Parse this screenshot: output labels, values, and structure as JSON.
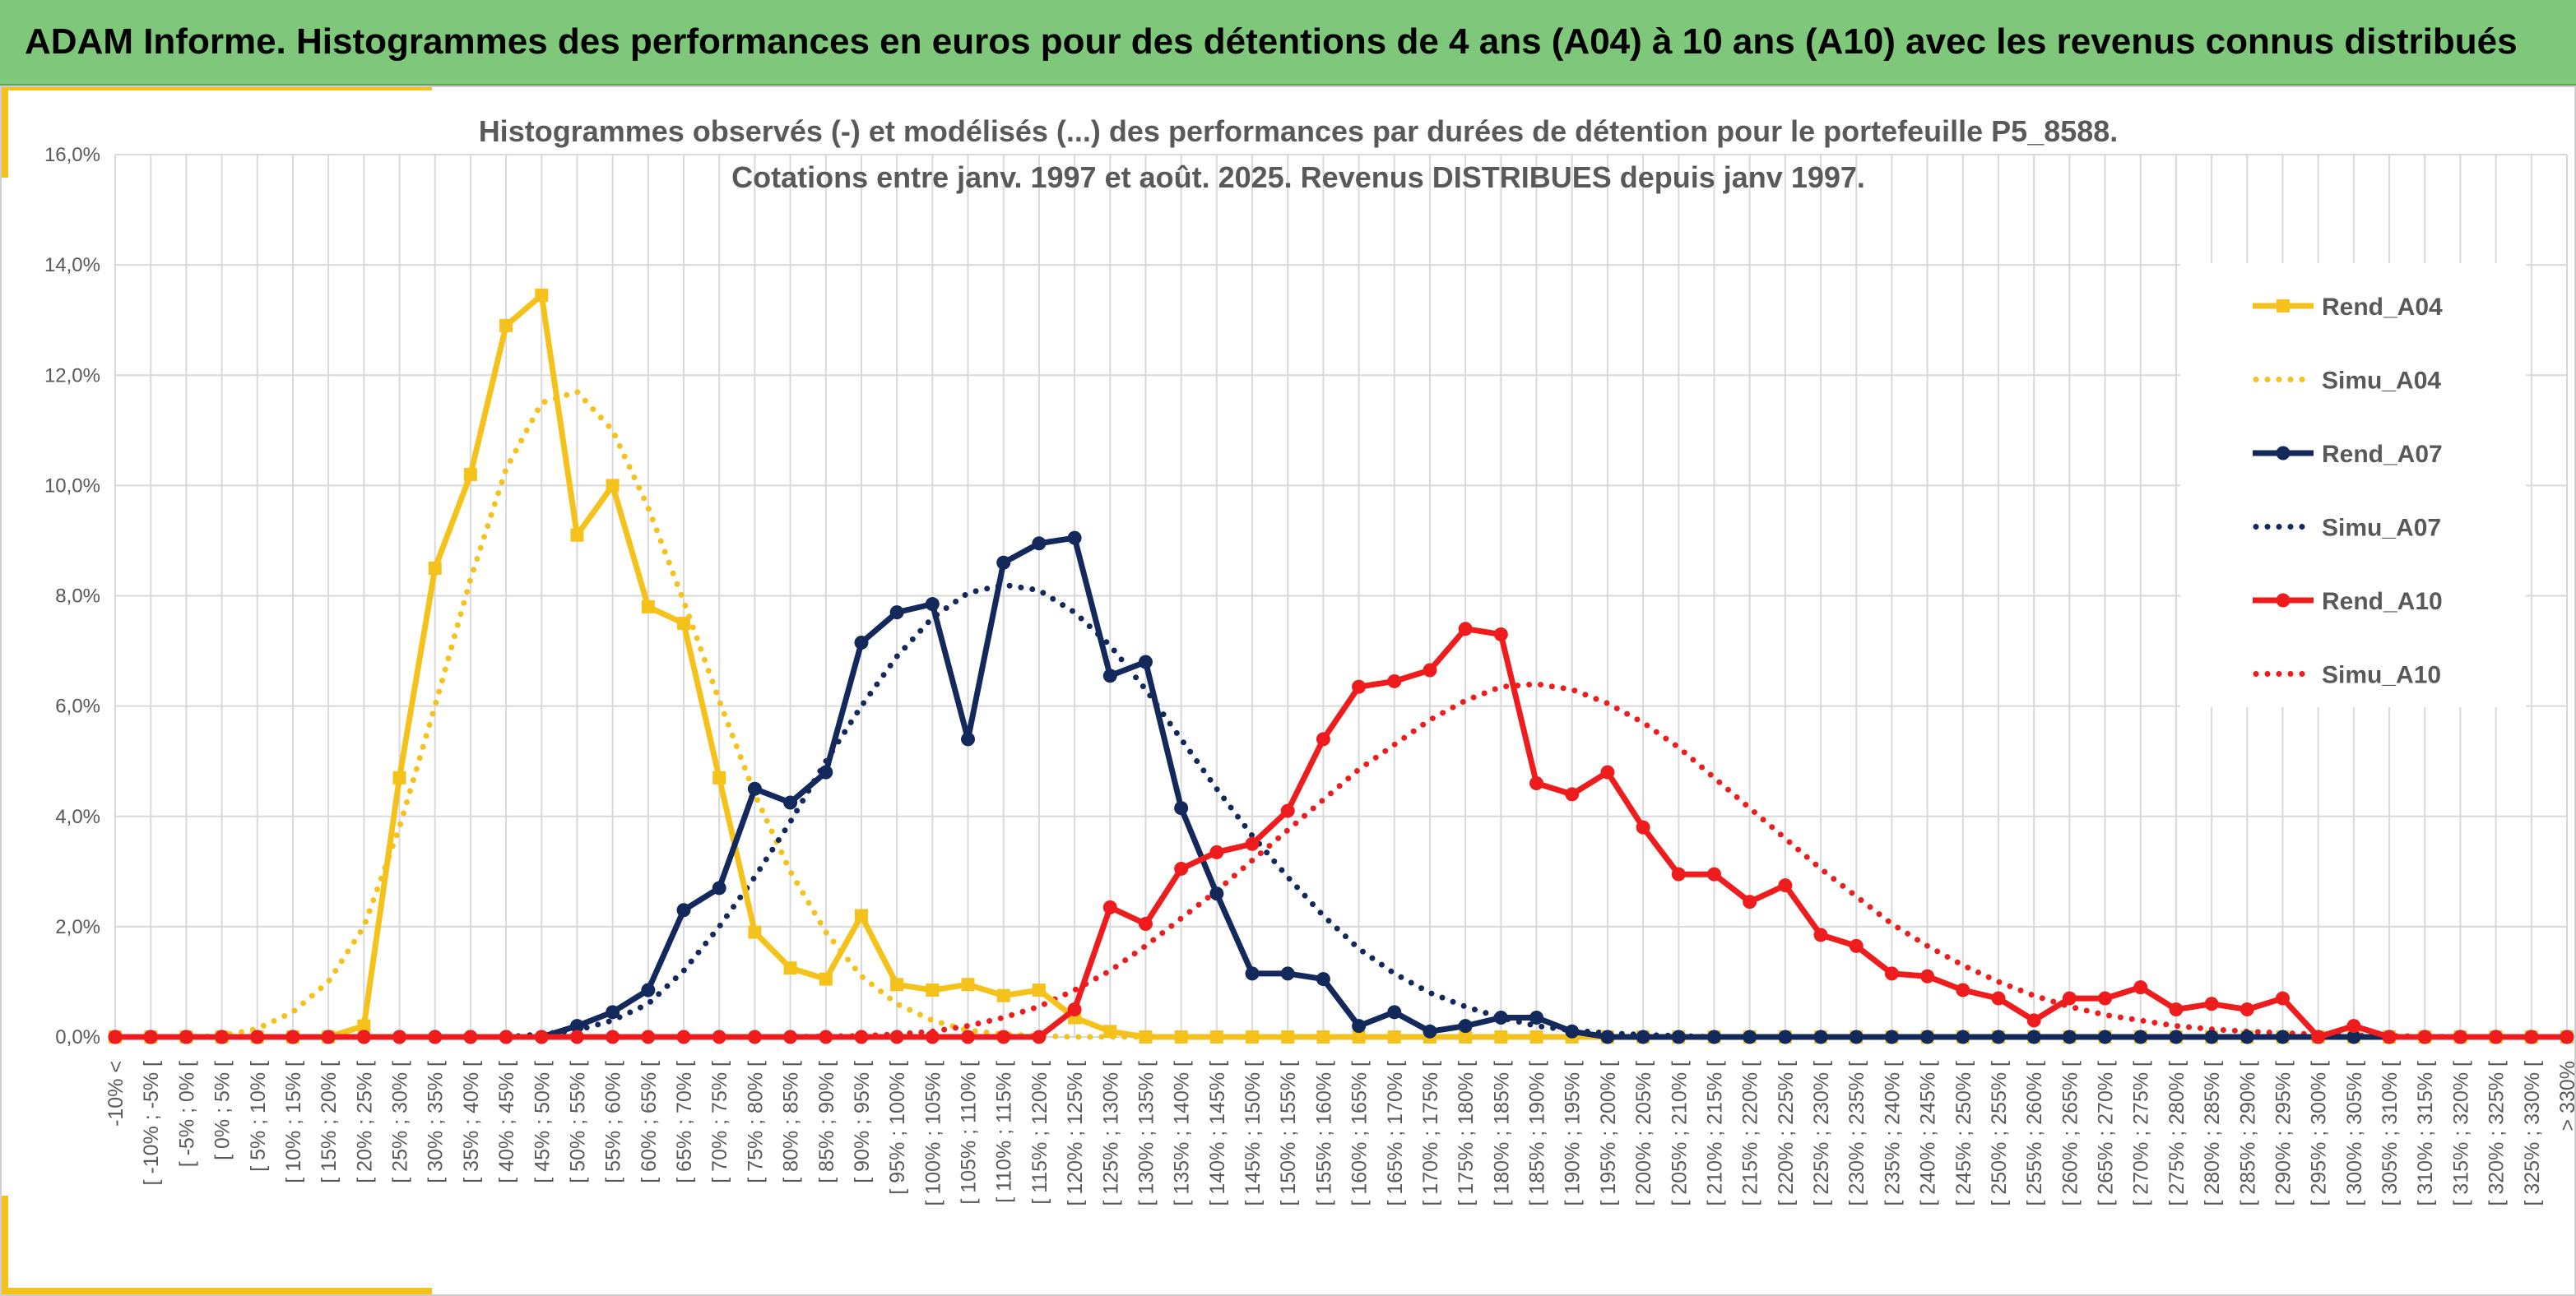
{
  "header": {
    "title": "ADAM Informe. Histogrammes des performances en euros pour des détentions de 4 ans (A04) à 10 ans (A10) avec les revenus connus distribués"
  },
  "colors": {
    "header_bg": "#7fc77a",
    "accent": "#f5c21b",
    "A04": "#f5c21b",
    "A07": "#13295c",
    "A10": "#ee1c1c",
    "grid": "#d9d9d9",
    "text": "#595959"
  },
  "chart_data": {
    "type": "line",
    "title": "Histogrammes observés (-) et modélisés (...) des performances par durées de détention pour le portefeuille P5_8588.",
    "subtitle": "Cotations entre janv. 1997 et août. 2025. Revenus DISTRIBUES depuis janv 1997.",
    "grid": true,
    "legend_position": "right",
    "ylim": [
      0,
      16
    ],
    "y_unit": "%",
    "y_ticks": [
      "0,0%",
      "2,0%",
      "4,0%",
      "6,0%",
      "8,0%",
      "10,0%",
      "12,0%",
      "14,0%",
      "16,0%"
    ],
    "categories": [
      "-10% <",
      "[ -10% ; -5% [",
      "[ -5% ; 0% [",
      "[ 0% ; 5% [",
      "[ 5% ; 10% [",
      "[ 10% ; 15% [",
      "[ 15% ; 20% [",
      "[ 20% ; 25% [",
      "[ 25% ; 30% [",
      "[ 30% ; 35% [",
      "[ 35% ; 40% [",
      "[ 40% ; 45% [",
      "[ 45% ; 50% [",
      "[ 50% ; 55% [",
      "[ 55% ; 60% [",
      "[ 60% ; 65% [",
      "[ 65% ; 70% [",
      "[ 70% ; 75% [",
      "[ 75% ; 80% [",
      "[ 80% ; 85% [",
      "[ 85% ; 90% [",
      "[ 90% ; 95% [",
      "[ 95% ; 100% [",
      "[ 100% ; 105% [",
      "[ 105% ; 110% [",
      "[ 110% ; 115% [",
      "[ 115% ; 120% [",
      "[ 120% ; 125% [",
      "[ 125% ; 130% [",
      "[ 130% ; 135% [",
      "[ 135% ; 140% [",
      "[ 140% ; 145% [",
      "[ 145% ; 150% [",
      "[ 150% ; 155% [",
      "[ 155% ; 160% [",
      "[ 160% ; 165% [",
      "[ 165% ; 170% [",
      "[ 170% ; 175% [",
      "[ 175% ; 180% [",
      "[ 180% ; 185% [",
      "[ 185% ; 190% [",
      "[ 190% ; 195% [",
      "[ 195% ; 200% [",
      "[ 200% ; 205% [",
      "[ 205% ; 210% [",
      "[ 210% ; 215% [",
      "[ 215% ; 220% [",
      "[ 220% ; 225% [",
      "[ 225% ; 230% [",
      "[ 230% ; 235% [",
      "[ 235% ; 240% [",
      "[ 240% ; 245% [",
      "[ 245% ; 250% [",
      "[ 250% ; 255% [",
      "[ 255% ; 260% [",
      "[ 260% ; 265% [",
      "[ 265% ; 270% [",
      "[ 270% ; 275% [",
      "[ 275% ; 280% [",
      "[ 280% ; 285% [",
      "[ 285% ; 290% [",
      "[ 290% ; 295% [",
      "[ 295% ; 300% [",
      "[ 300% ; 305% [",
      "[ 305% ; 310% [",
      "[ 310% ; 315% [",
      "[ 315% ; 320% [",
      "[ 320% ; 325% [",
      "[ 325% ; 330% [",
      "> 330%"
    ],
    "series": [
      {
        "name": "Rend_A04",
        "style": "solid",
        "marker": "square",
        "color": "#f5c21b",
        "values": [
          0,
          0,
          0,
          0,
          0,
          0,
          0,
          0.2,
          4.7,
          8.5,
          10.2,
          12.9,
          13.45,
          9.1,
          10.0,
          7.8,
          7.5,
          4.7,
          1.9,
          1.25,
          1.05,
          2.2,
          0.95,
          0.85,
          0.95,
          0.75,
          0.85,
          0.35,
          0.1,
          0,
          0,
          0,
          0,
          0,
          0,
          0,
          0,
          0,
          0,
          0,
          0,
          0,
          0,
          0,
          0,
          0,
          0,
          0,
          0,
          0,
          0,
          0,
          0,
          0,
          0,
          0,
          0,
          0,
          0,
          0,
          0,
          0,
          0,
          0,
          0,
          0,
          0,
          0,
          0,
          0
        ]
      },
      {
        "name": "Simu_A04",
        "style": "dotted",
        "marker": "none",
        "color": "#f5c21b",
        "values": [
          0,
          0,
          0,
          0.02,
          0.15,
          0.45,
          1.0,
          2.0,
          3.8,
          6.0,
          8.3,
          10.3,
          11.5,
          11.7,
          11.0,
          9.6,
          7.9,
          6.1,
          4.4,
          3.0,
          1.9,
          1.1,
          0.6,
          0.3,
          0.12,
          0.05,
          0.02,
          0,
          0,
          0,
          0,
          0,
          0,
          0,
          0,
          0,
          0,
          0,
          0,
          0,
          0,
          0,
          0,
          0,
          0,
          0,
          0,
          0,
          0,
          0,
          0,
          0,
          0,
          0,
          0,
          0,
          0,
          0,
          0,
          0,
          0,
          0,
          0,
          0,
          0,
          0,
          0,
          0,
          0,
          0
        ]
      },
      {
        "name": "Rend_A07",
        "style": "solid",
        "marker": "circle",
        "color": "#13295c",
        "values": [
          0,
          0,
          0,
          0,
          0,
          0,
          0,
          0,
          0,
          0,
          0,
          0,
          0,
          0.2,
          0.45,
          0.85,
          2.3,
          2.7,
          4.5,
          4.25,
          4.8,
          7.15,
          7.7,
          7.85,
          5.4,
          8.6,
          8.95,
          9.05,
          6.55,
          6.8,
          4.15,
          2.6,
          1.15,
          1.15,
          1.05,
          0.2,
          0.45,
          0.1,
          0.2,
          0.35,
          0.35,
          0.1,
          0,
          0,
          0,
          0,
          0,
          0,
          0,
          0,
          0,
          0,
          0,
          0,
          0,
          0,
          0,
          0,
          0,
          0,
          0,
          0,
          0,
          0,
          0,
          0,
          0,
          0,
          0,
          0
        ]
      },
      {
        "name": "Simu_A07",
        "style": "dotted",
        "marker": "none",
        "color": "#13295c",
        "values": [
          0,
          0,
          0,
          0,
          0,
          0,
          0,
          0,
          0,
          0,
          0,
          0,
          0.05,
          0.12,
          0.3,
          0.6,
          1.2,
          2.0,
          2.9,
          3.9,
          5.0,
          6.0,
          6.9,
          7.6,
          8.05,
          8.2,
          8.1,
          7.7,
          7.1,
          6.3,
          5.4,
          4.5,
          3.65,
          2.9,
          2.2,
          1.6,
          1.15,
          0.8,
          0.55,
          0.35,
          0.2,
          0.12,
          0.07,
          0.04,
          0.02,
          0,
          0,
          0,
          0,
          0,
          0,
          0,
          0,
          0,
          0,
          0,
          0,
          0,
          0,
          0,
          0,
          0,
          0,
          0,
          0,
          0,
          0,
          0,
          0,
          0
        ]
      },
      {
        "name": "Rend_A10",
        "style": "solid",
        "marker": "circle",
        "color": "#ee1c1c",
        "values": [
          0,
          0,
          0,
          0,
          0,
          0,
          0,
          0,
          0,
          0,
          0,
          0,
          0,
          0,
          0,
          0,
          0,
          0,
          0,
          0,
          0,
          0,
          0,
          0,
          0,
          0,
          0,
          0.5,
          2.35,
          2.05,
          3.05,
          3.35,
          3.5,
          4.1,
          5.4,
          6.35,
          6.45,
          6.65,
          7.4,
          7.3,
          4.6,
          4.4,
          4.8,
          3.8,
          2.95,
          2.95,
          2.45,
          2.75,
          1.85,
          1.65,
          1.15,
          1.1,
          0.85,
          0.7,
          0.3,
          0.7,
          0.7,
          0.9,
          0.5,
          0.6,
          0.5,
          0.7,
          0,
          0.2,
          0,
          0,
          0,
          0,
          0,
          0
        ]
      },
      {
        "name": "Simu_A10",
        "style": "dotted",
        "marker": "none",
        "color": "#ee1c1c",
        "values": [
          0,
          0,
          0,
          0,
          0,
          0,
          0,
          0,
          0,
          0,
          0,
          0,
          0,
          0,
          0,
          0,
          0,
          0,
          0,
          0,
          0.01,
          0.02,
          0.05,
          0.1,
          0.2,
          0.35,
          0.55,
          0.85,
          1.2,
          1.65,
          2.15,
          2.65,
          3.2,
          3.75,
          4.3,
          4.85,
          5.3,
          5.75,
          6.1,
          6.35,
          6.4,
          6.3,
          6.05,
          5.7,
          5.25,
          4.7,
          4.15,
          3.6,
          3.05,
          2.55,
          2.05,
          1.65,
          1.3,
          1.0,
          0.75,
          0.55,
          0.4,
          0.3,
          0.2,
          0.14,
          0.1,
          0.07,
          0.05,
          0.03,
          0.02,
          0.01,
          0,
          0,
          0,
          0
        ]
      }
    ]
  }
}
